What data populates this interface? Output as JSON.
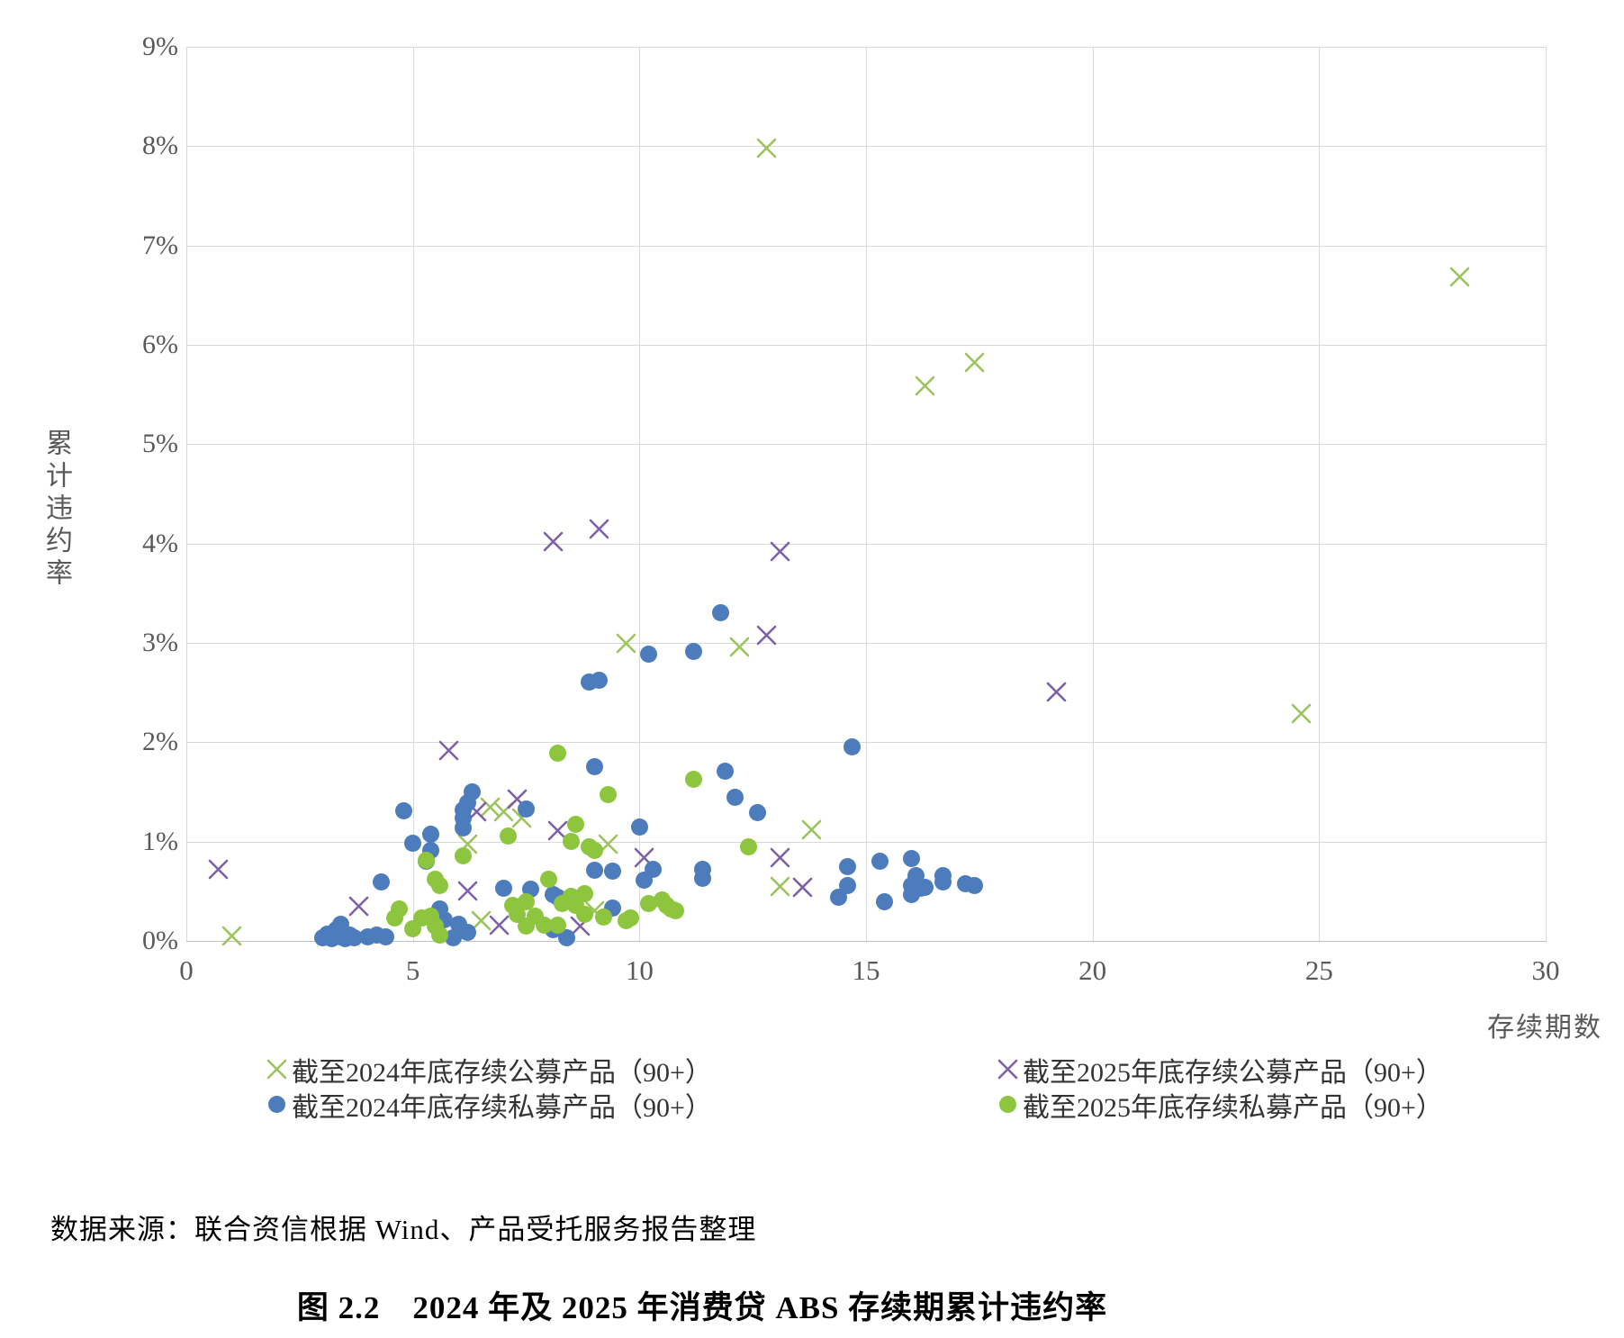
{
  "title": "图 2.2　2024 年及 2025 年消费贷 ABS 存续期累计违约率",
  "caption": "数据来源：联合资信根据 Wind、产品受托服务报告整理",
  "chart": {
    "y_axis_title": "累计违约率",
    "x_axis_title": "存续期数",
    "y_ticks": [
      "0%",
      "1%",
      "2%",
      "3%",
      "4%",
      "5%",
      "6%",
      "7%",
      "8%",
      "9%"
    ],
    "x_ticks": [
      "0",
      "5",
      "10",
      "15",
      "20",
      "25",
      "30"
    ]
  },
  "legend": {
    "items": [
      {
        "label": "截至2024年底存续公募产品（90+）",
        "marker": "x",
        "color": "#9bc45c"
      },
      {
        "label": "截至2024年底存续私募产品（90+）",
        "marker": "circle",
        "color": "#4d7cbd"
      },
      {
        "label": "截至2025年底存续公募产品（90+）",
        "marker": "x",
        "color": "#7d60a7"
      },
      {
        "label": "截至2025年底存续私募产品（90+）",
        "marker": "circle",
        "color": "#8dc63e"
      }
    ]
  },
  "chart_data": {
    "type": "scatter",
    "title": "2024 年及 2025 年消费贷 ABS 存续期累计违约率",
    "xlabel": "存续期数",
    "ylabel": "累计违约率",
    "xlim": [
      0,
      30
    ],
    "ylim": [
      0,
      9
    ],
    "y_unit": "%",
    "grid": true,
    "legend_position": "bottom",
    "series": [
      {
        "name": "截至2024年底存续公募产品（90+）",
        "marker": "x",
        "color": "#9bc45c",
        "points": [
          [
            1.0,
            0.05
          ],
          [
            6.2,
            0.97
          ],
          [
            6.5,
            0.2
          ],
          [
            6.7,
            1.35
          ],
          [
            7.0,
            1.3
          ],
          [
            7.4,
            1.24
          ],
          [
            9.0,
            0.3
          ],
          [
            9.3,
            0.97
          ],
          [
            9.7,
            3.0
          ],
          [
            12.2,
            2.96
          ],
          [
            12.8,
            7.98
          ],
          [
            13.1,
            0.55
          ],
          [
            13.8,
            1.12
          ],
          [
            16.3,
            5.59
          ],
          [
            17.4,
            5.82
          ],
          [
            24.6,
            2.29
          ],
          [
            28.1,
            6.68
          ]
        ]
      },
      {
        "name": "截至2025年底存续公募产品（90+）",
        "marker": "x",
        "color": "#7d60a7",
        "points": [
          [
            0.7,
            0.72
          ],
          [
            3.8,
            0.35
          ],
          [
            5.8,
            1.92
          ],
          [
            6.2,
            0.5
          ],
          [
            6.4,
            1.3
          ],
          [
            6.9,
            0.16
          ],
          [
            7.3,
            1.43
          ],
          [
            8.1,
            4.02
          ],
          [
            8.2,
            1.11
          ],
          [
            8.7,
            0.15
          ],
          [
            9.1,
            4.15
          ],
          [
            10.1,
            0.84
          ],
          [
            12.8,
            3.08
          ],
          [
            13.1,
            3.92
          ],
          [
            13.1,
            0.84
          ],
          [
            13.6,
            0.54
          ],
          [
            19.2,
            2.51
          ]
        ]
      },
      {
        "name": "截至2024年底存续私募产品（90+）",
        "marker": "circle",
        "color": "#4d7cbd",
        "points": [
          [
            3.0,
            0.03
          ],
          [
            3.1,
            0.07
          ],
          [
            3.2,
            0.02
          ],
          [
            3.3,
            0.11
          ],
          [
            3.4,
            0.04
          ],
          [
            3.4,
            0.17
          ],
          [
            3.5,
            0.02
          ],
          [
            3.6,
            0.06
          ],
          [
            3.7,
            0.03
          ],
          [
            4.0,
            0.04
          ],
          [
            4.2,
            0.06
          ],
          [
            4.3,
            0.59
          ],
          [
            4.4,
            0.04
          ],
          [
            4.8,
            1.31
          ],
          [
            5.0,
            0.98
          ],
          [
            5.3,
            0.8
          ],
          [
            5.4,
            0.91
          ],
          [
            5.4,
            1.07
          ],
          [
            5.6,
            0.32
          ],
          [
            5.7,
            0.21
          ],
          [
            5.9,
            0.03
          ],
          [
            6.0,
            0.17
          ],
          [
            6.1,
            1.14
          ],
          [
            6.1,
            1.24
          ],
          [
            6.1,
            1.32
          ],
          [
            6.2,
            1.39
          ],
          [
            6.2,
            0.09
          ],
          [
            6.3,
            1.5
          ],
          [
            7.0,
            0.53
          ],
          [
            7.5,
            1.33
          ],
          [
            7.6,
            0.52
          ],
          [
            8.1,
            0.11
          ],
          [
            8.1,
            0.47
          ],
          [
            8.2,
            0.44
          ],
          [
            8.4,
            0.03
          ],
          [
            8.9,
            2.61
          ],
          [
            9.0,
            0.71
          ],
          [
            9.0,
            1.75
          ],
          [
            9.1,
            2.62
          ],
          [
            9.4,
            0.33
          ],
          [
            9.4,
            0.7
          ],
          [
            10.0,
            1.15
          ],
          [
            10.1,
            0.61
          ],
          [
            10.2,
            2.89
          ],
          [
            10.3,
            0.72
          ],
          [
            11.2,
            2.91
          ],
          [
            11.4,
            0.63
          ],
          [
            11.4,
            0.72
          ],
          [
            11.8,
            3.3
          ],
          [
            11.9,
            1.71
          ],
          [
            12.1,
            1.45
          ],
          [
            12.6,
            1.29
          ],
          [
            14.4,
            0.44
          ],
          [
            14.6,
            0.56
          ],
          [
            14.6,
            0.75
          ],
          [
            14.7,
            1.95
          ],
          [
            15.3,
            0.8
          ],
          [
            15.4,
            0.39
          ],
          [
            16.0,
            0.47
          ],
          [
            16.0,
            0.56
          ],
          [
            16.0,
            0.83
          ],
          [
            16.1,
            0.66
          ],
          [
            16.2,
            0.53
          ],
          [
            16.3,
            0.54
          ],
          [
            16.7,
            0.59
          ],
          [
            16.7,
            0.66
          ],
          [
            17.2,
            0.58
          ],
          [
            17.4,
            0.56
          ]
        ]
      },
      {
        "name": "截至2025年底存续私募产品（90+）",
        "marker": "circle",
        "color": "#8dc63e",
        "points": [
          [
            4.6,
            0.23
          ],
          [
            4.7,
            0.32
          ],
          [
            5.0,
            0.12
          ],
          [
            5.2,
            0.23
          ],
          [
            5.3,
            0.81
          ],
          [
            5.4,
            0.25
          ],
          [
            5.5,
            0.15
          ],
          [
            5.5,
            0.62
          ],
          [
            5.6,
            0.06
          ],
          [
            5.6,
            0.56
          ],
          [
            6.1,
            0.86
          ],
          [
            7.1,
            1.06
          ],
          [
            7.2,
            0.36
          ],
          [
            7.3,
            0.27
          ],
          [
            7.5,
            0.15
          ],
          [
            7.5,
            0.39
          ],
          [
            7.7,
            0.25
          ],
          [
            7.9,
            0.16
          ],
          [
            8.0,
            0.62
          ],
          [
            8.2,
            0.16
          ],
          [
            8.2,
            1.89
          ],
          [
            8.3,
            0.38
          ],
          [
            8.5,
            0.45
          ],
          [
            8.5,
            1.0
          ],
          [
            8.6,
            0.36
          ],
          [
            8.6,
            1.17
          ],
          [
            8.8,
            0.27
          ],
          [
            8.8,
            0.48
          ],
          [
            8.9,
            0.95
          ],
          [
            9.0,
            0.91
          ],
          [
            9.2,
            0.24
          ],
          [
            9.3,
            1.47
          ],
          [
            9.7,
            0.2
          ],
          [
            9.8,
            0.23
          ],
          [
            10.2,
            0.38
          ],
          [
            10.5,
            0.41
          ],
          [
            10.6,
            0.36
          ],
          [
            10.7,
            0.32
          ],
          [
            10.8,
            0.3
          ],
          [
            11.2,
            1.63
          ],
          [
            12.4,
            0.95
          ]
        ]
      }
    ]
  }
}
